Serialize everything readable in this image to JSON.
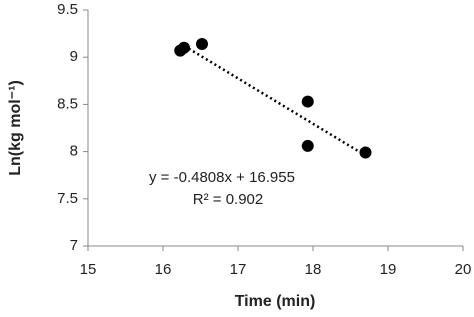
{
  "chart_data": {
    "type": "scatter",
    "x_label": "Time (min)",
    "y_label": "Ln(kg mol⁻¹)",
    "series": [
      {
        "color": "#000000",
        "x": [
          16.23,
          16.28,
          16.52,
          17.93,
          17.93,
          18.7
        ],
        "values": [
          9.07,
          9.1,
          9.14,
          8.53,
          8.06,
          7.99
        ]
      }
    ],
    "xlim": [
      15,
      20
    ],
    "xticks": [
      15,
      16,
      17,
      18,
      19,
      20
    ],
    "ylim": [
      7,
      9.5
    ],
    "yticks": [
      7,
      7.5,
      8,
      8.5,
      9,
      9.5
    ],
    "trendline_color": "#000000",
    "annotations": [
      "y = -0.4808x + 16.955",
      "R² = 0.902"
    ],
    "grid": false
  }
}
